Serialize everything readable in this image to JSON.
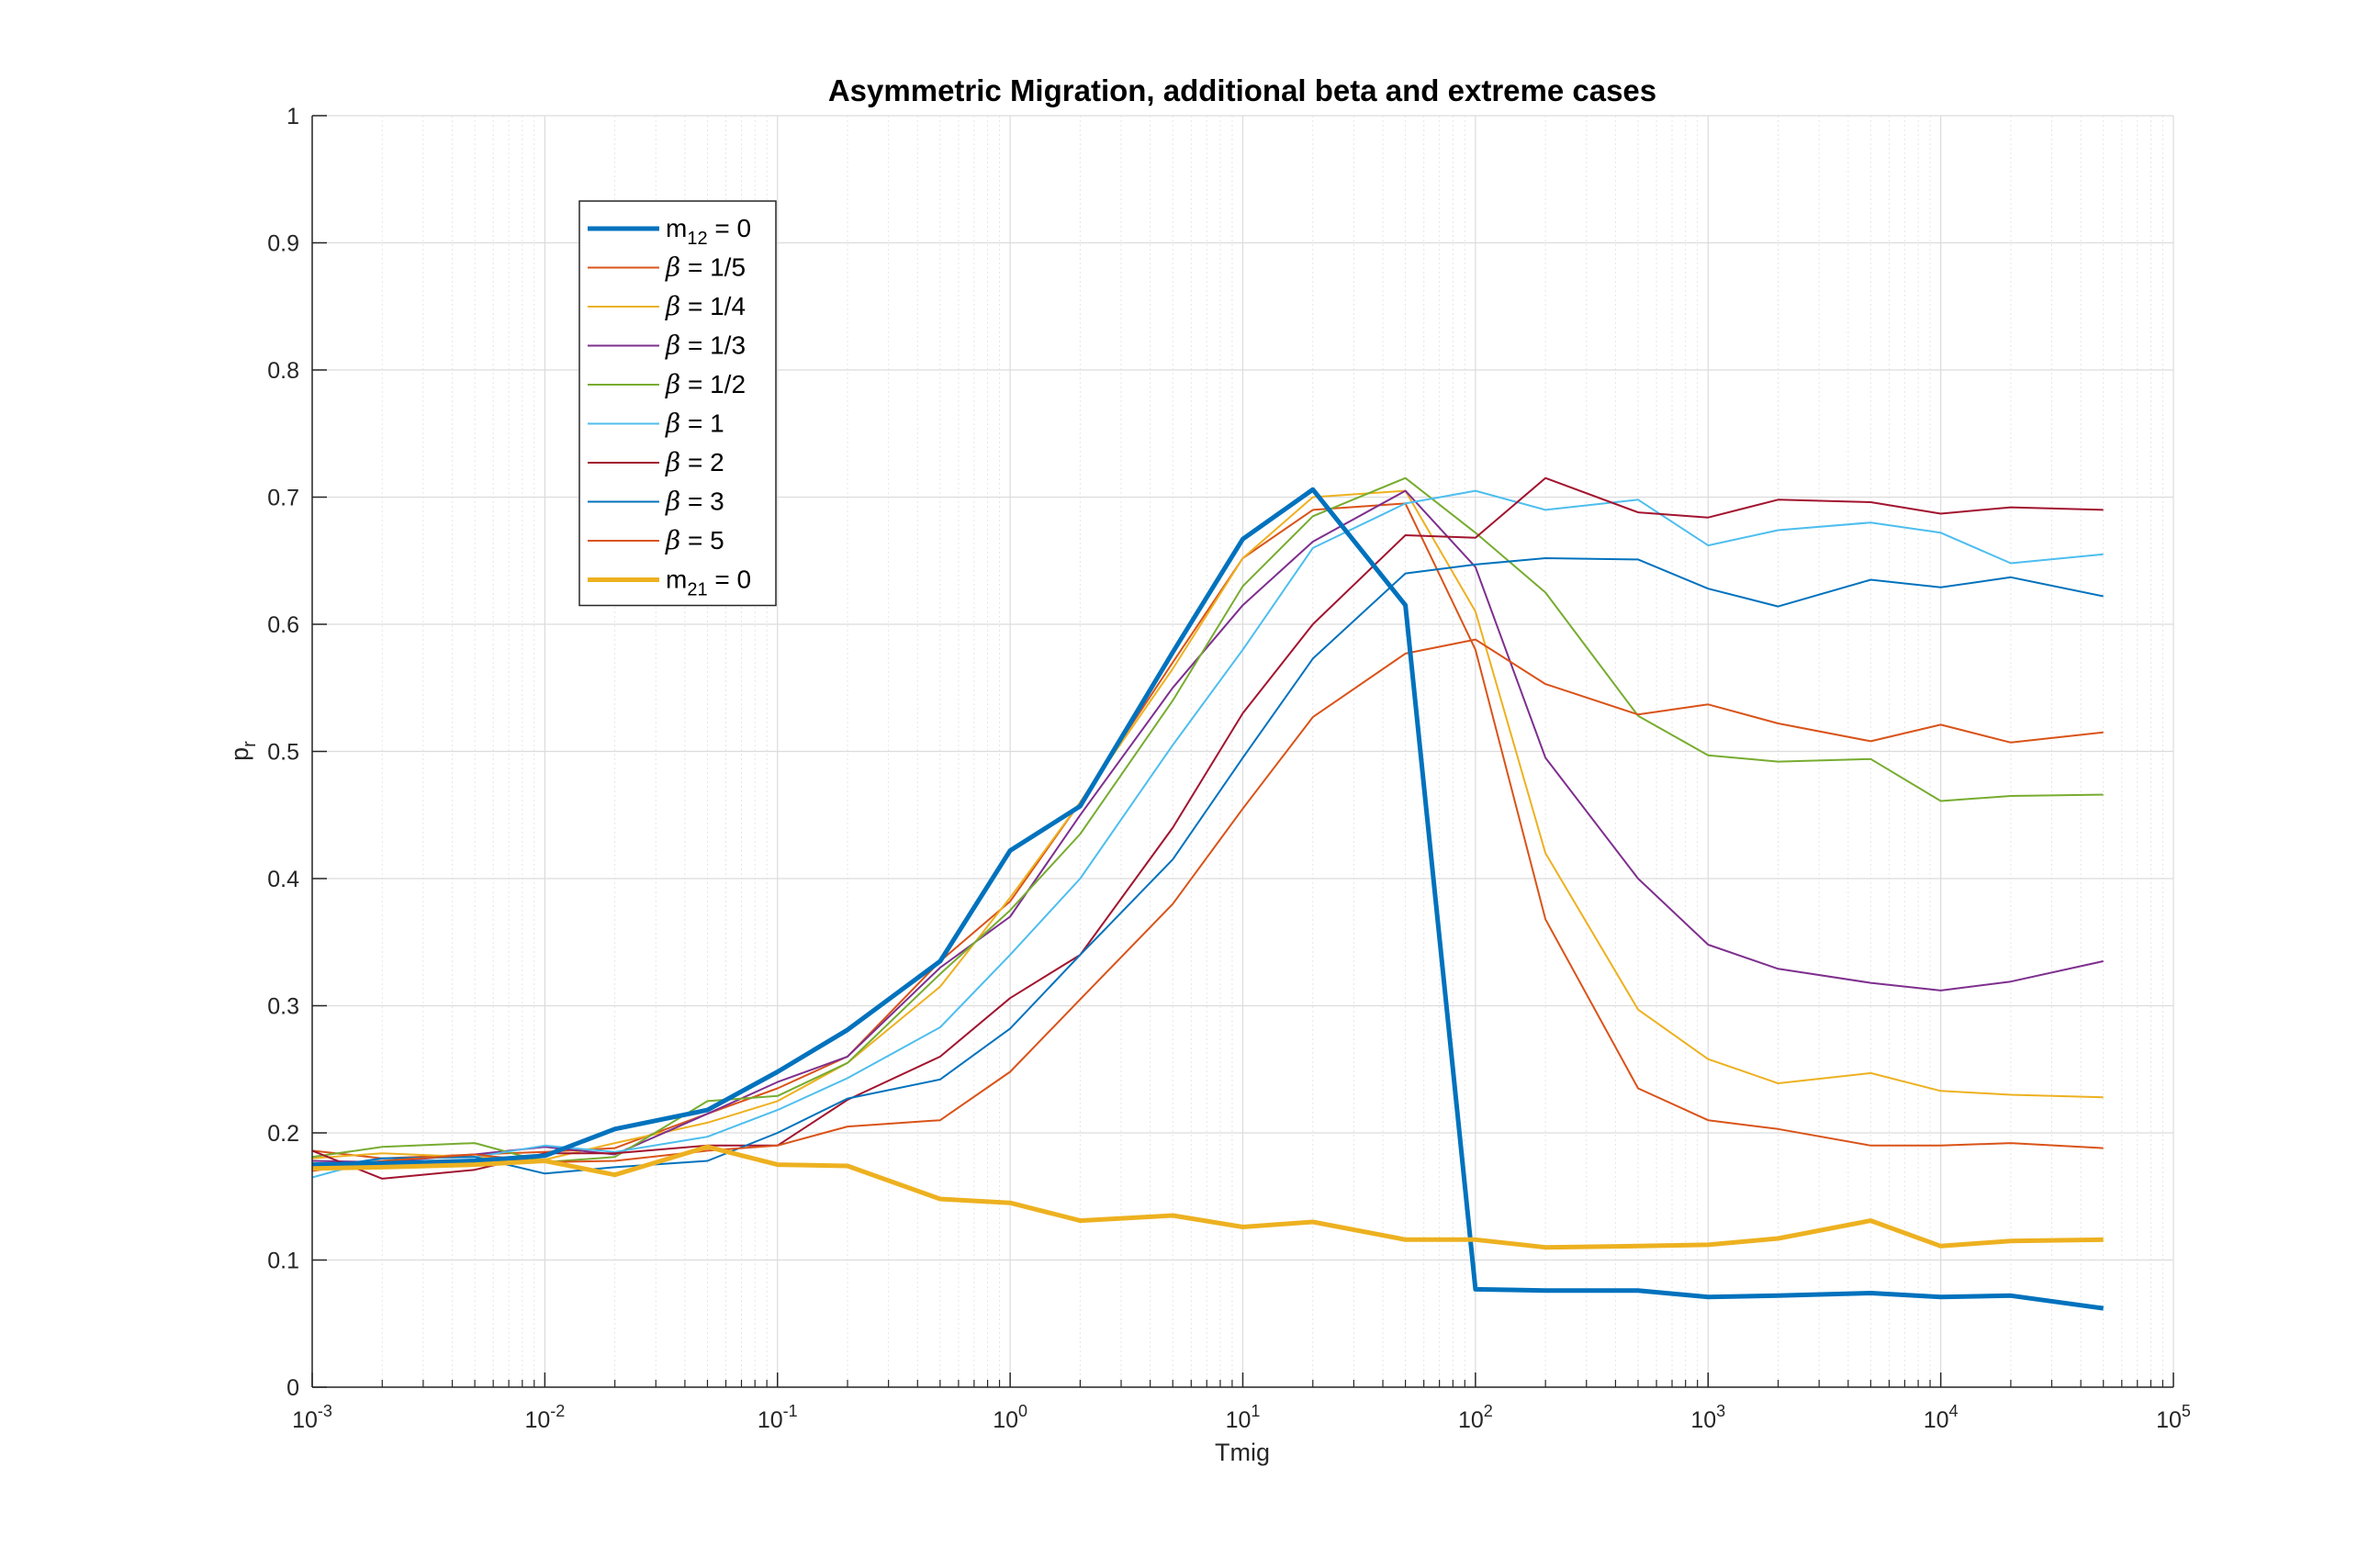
{
  "chart_data": {
    "type": "line",
    "title": "Asymmetric Migration, additional beta and extreme cases",
    "xlabel": "Tmig",
    "ylabel": {
      "base": "p",
      "sub": "r"
    },
    "xscale": "log",
    "xlim": [
      0.001,
      100000
    ],
    "ylim": [
      0,
      1
    ],
    "grid": true,
    "minor_grid": true,
    "legend_position": "top-left",
    "x_ticks": [
      {
        "value": 0.001,
        "base": "10",
        "exp": "-3"
      },
      {
        "value": 0.01,
        "base": "10",
        "exp": "-2"
      },
      {
        "value": 0.1,
        "base": "10",
        "exp": "-1"
      },
      {
        "value": 1,
        "base": "10",
        "exp": "0"
      },
      {
        "value": 10,
        "base": "10",
        "exp": "1"
      },
      {
        "value": 100,
        "base": "10",
        "exp": "2"
      },
      {
        "value": 1000,
        "base": "10",
        "exp": "3"
      },
      {
        "value": 10000,
        "base": "10",
        "exp": "4"
      },
      {
        "value": 100000,
        "base": "10",
        "exp": "5"
      }
    ],
    "y_ticks": [
      {
        "value": 0,
        "label": "0"
      },
      {
        "value": 0.1,
        "label": "0.1"
      },
      {
        "value": 0.2,
        "label": "0.2"
      },
      {
        "value": 0.3,
        "label": "0.3"
      },
      {
        "value": 0.4,
        "label": "0.4"
      },
      {
        "value": 0.5,
        "label": "0.5"
      },
      {
        "value": 0.6,
        "label": "0.6"
      },
      {
        "value": 0.7,
        "label": "0.7"
      },
      {
        "value": 0.8,
        "label": "0.8"
      },
      {
        "value": 0.9,
        "label": "0.9"
      },
      {
        "value": 1,
        "label": "1"
      }
    ],
    "x": [
      0.001,
      0.002,
      0.005,
      0.01,
      0.02,
      0.05,
      0.1,
      0.2,
      0.5,
      1,
      2,
      5,
      10,
      20,
      50,
      100,
      200,
      500,
      1000,
      2000,
      5000,
      10000,
      20000,
      50000
    ],
    "series": [
      {
        "name": "m12 = 0",
        "label_prefix": "m",
        "label_sub": "12",
        "label_suffix": " = 0",
        "greek": false,
        "color": "#0072BD",
        "width": 5,
        "values": [
          0.175,
          0.176,
          0.178,
          0.182,
          0.203,
          0.218,
          0.248,
          0.281,
          0.335,
          0.422,
          0.457,
          0.578,
          0.667,
          0.706,
          0.615,
          0.077,
          0.076,
          0.076,
          0.071,
          0.072,
          0.074,
          0.071,
          0.072,
          0.062
        ]
      },
      {
        "name": "β = 1/5",
        "label_prefix": "β",
        "label_sub": "",
        "label_suffix": " = 1/5",
        "greek": true,
        "color": "#D95319",
        "width": 2,
        "values": [
          0.186,
          0.18,
          0.183,
          0.185,
          0.188,
          0.215,
          0.235,
          0.26,
          0.335,
          0.382,
          0.46,
          0.57,
          0.652,
          0.69,
          0.695,
          0.58,
          0.368,
          0.235,
          0.21,
          0.203,
          0.19,
          0.19,
          0.192,
          0.188
        ]
      },
      {
        "name": "β = 1/4",
        "label_prefix": "β",
        "label_sub": "",
        "label_suffix": " = 1/4",
        "greek": true,
        "color": "#EDB120",
        "width": 2,
        "values": [
          0.18,
          0.184,
          0.181,
          0.179,
          0.192,
          0.208,
          0.225,
          0.255,
          0.315,
          0.385,
          0.46,
          0.565,
          0.652,
          0.7,
          0.705,
          0.61,
          0.42,
          0.297,
          0.258,
          0.239,
          0.247,
          0.233,
          0.23,
          0.228
        ]
      },
      {
        "name": "β = 1/3",
        "label_prefix": "β",
        "label_sub": "",
        "label_suffix": " = 1/3",
        "greek": true,
        "color": "#7E2F8E",
        "width": 2,
        "values": [
          0.178,
          0.177,
          0.183,
          0.189,
          0.183,
          0.215,
          0.24,
          0.26,
          0.33,
          0.37,
          0.45,
          0.55,
          0.615,
          0.665,
          0.705,
          0.645,
          0.495,
          0.4,
          0.348,
          0.329,
          0.318,
          0.312,
          0.319,
          0.335
        ]
      },
      {
        "name": "β = 1/2",
        "label_prefix": "β",
        "label_sub": "",
        "label_suffix": " = 1/2",
        "greek": true,
        "color": "#77AC30",
        "width": 2,
        "values": [
          0.181,
          0.189,
          0.192,
          0.177,
          0.181,
          0.225,
          0.229,
          0.255,
          0.325,
          0.375,
          0.435,
          0.54,
          0.63,
          0.685,
          0.715,
          0.672,
          0.625,
          0.528,
          0.497,
          0.492,
          0.494,
          0.461,
          0.465,
          0.466
        ]
      },
      {
        "name": "β = 1",
        "label_prefix": "β",
        "label_sub": "",
        "label_suffix": " = 1",
        "greek": true,
        "color": "#4DBEEE",
        "width": 2,
        "values": [
          0.165,
          0.18,
          0.181,
          0.19,
          0.185,
          0.197,
          0.218,
          0.243,
          0.283,
          0.34,
          0.4,
          0.505,
          0.58,
          0.66,
          0.695,
          0.705,
          0.69,
          0.698,
          0.662,
          0.674,
          0.68,
          0.672,
          0.648,
          0.655
        ]
      },
      {
        "name": "β = 2",
        "label_prefix": "β",
        "label_sub": "",
        "label_suffix": " = 2",
        "greek": true,
        "color": "#A2142F",
        "width": 2,
        "values": [
          0.186,
          0.164,
          0.171,
          0.184,
          0.184,
          0.19,
          0.19,
          0.226,
          0.26,
          0.306,
          0.34,
          0.44,
          0.53,
          0.6,
          0.67,
          0.668,
          0.715,
          0.688,
          0.684,
          0.698,
          0.696,
          0.687,
          0.692,
          0.69
        ]
      },
      {
        "name": "β = 3",
        "label_prefix": "β",
        "label_sub": "",
        "label_suffix": " = 3",
        "greek": true,
        "color": "#0072BD",
        "width": 2,
        "values": [
          0.172,
          0.18,
          0.181,
          0.168,
          0.173,
          0.178,
          0.2,
          0.227,
          0.242,
          0.282,
          0.34,
          0.415,
          0.495,
          0.573,
          0.64,
          0.647,
          0.652,
          0.651,
          0.628,
          0.614,
          0.635,
          0.629,
          0.637,
          0.622
        ]
      },
      {
        "name": "β = 5",
        "label_prefix": "β",
        "label_sub": "",
        "label_suffix": " = 5",
        "greek": true,
        "color": "#D95319",
        "width": 2,
        "values": [
          0.17,
          0.178,
          0.183,
          0.177,
          0.178,
          0.186,
          0.19,
          0.205,
          0.21,
          0.248,
          0.305,
          0.38,
          0.455,
          0.527,
          0.577,
          0.588,
          0.553,
          0.529,
          0.537,
          0.522,
          0.508,
          0.521,
          0.507,
          0.515
        ]
      },
      {
        "name": "m21 = 0",
        "label_prefix": "m",
        "label_sub": "21",
        "label_suffix": " = 0",
        "greek": false,
        "color": "#EDB120",
        "width": 5,
        "values": [
          0.172,
          0.173,
          0.175,
          0.178,
          0.167,
          0.189,
          0.175,
          0.174,
          0.148,
          0.145,
          0.131,
          0.135,
          0.126,
          0.13,
          0.116,
          0.116,
          0.11,
          0.111,
          0.112,
          0.117,
          0.131,
          0.111,
          0.115,
          0.116
        ]
      }
    ]
  }
}
